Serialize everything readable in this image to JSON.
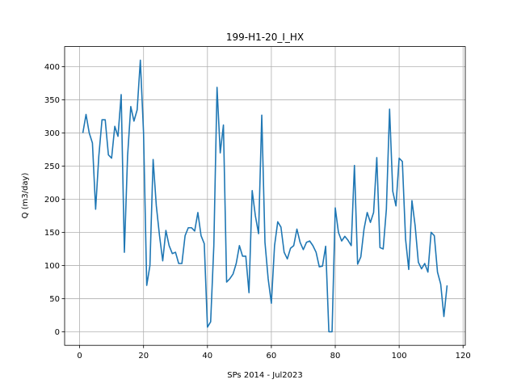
{
  "chart_data": {
    "type": "line",
    "title": "199-H1-20_I_HX",
    "xlabel": "SPs 2014 - Jul2023",
    "ylabel": "Q (m3/day)",
    "xlim": [
      -4.7,
      120.7
    ],
    "ylim": [
      -20.5,
      430.5
    ],
    "xticks": [
      0,
      20,
      40,
      60,
      80,
      100,
      120
    ],
    "yticks": [
      0,
      50,
      100,
      150,
      200,
      250,
      300,
      350,
      400
    ],
    "grid": true,
    "line_color": "#1f77b4",
    "series": [
      {
        "x": [
          1,
          2,
          3,
          4,
          5,
          6,
          7,
          8,
          9,
          10,
          11,
          12,
          13,
          14,
          15,
          16,
          17,
          18,
          19,
          20,
          21,
          22,
          23,
          24,
          25,
          26,
          27,
          28,
          29,
          30,
          31,
          32,
          33,
          34,
          35,
          36,
          37,
          38,
          39,
          40,
          41,
          42,
          43,
          44,
          45,
          46,
          47,
          48,
          49,
          50,
          51,
          52,
          53,
          54,
          55,
          56,
          57,
          58,
          59,
          60,
          61,
          62,
          63,
          64,
          65,
          66,
          67,
          68,
          69,
          70,
          71,
          72,
          73,
          74,
          75,
          76,
          77,
          78,
          79,
          80,
          81,
          82,
          83,
          84,
          85,
          86,
          87,
          88,
          89,
          90,
          91,
          92,
          93,
          94,
          95,
          96,
          97,
          98,
          99,
          100,
          101,
          102,
          103,
          104,
          105,
          106,
          107,
          108,
          109,
          110,
          111,
          112,
          113,
          114,
          115
        ],
        "values": [
          300,
          328,
          300,
          285,
          185,
          265,
          320,
          320,
          267,
          262,
          310,
          295,
          358,
          120,
          265,
          340,
          318,
          335,
          410,
          300,
          70,
          100,
          260,
          190,
          145,
          107,
          153,
          130,
          118,
          120,
          103,
          103,
          145,
          157,
          157,
          152,
          180,
          145,
          133,
          7,
          15,
          130,
          369,
          270,
          312,
          75,
          80,
          87,
          103,
          130,
          114,
          114,
          59,
          213,
          175,
          148,
          327,
          135,
          80,
          43,
          130,
          166,
          158,
          120,
          110,
          126,
          130,
          155,
          135,
          124,
          135,
          137,
          130,
          120,
          98,
          99,
          129,
          0,
          0,
          187,
          150,
          137,
          144,
          138,
          130,
          251,
          102,
          113,
          155,
          180,
          165,
          180,
          263,
          127,
          125,
          185,
          336,
          212,
          190,
          262,
          257,
          140,
          94,
          198,
          160,
          105,
          95,
          103,
          90,
          150,
          145,
          90,
          72,
          23,
          70
        ]
      }
    ]
  }
}
